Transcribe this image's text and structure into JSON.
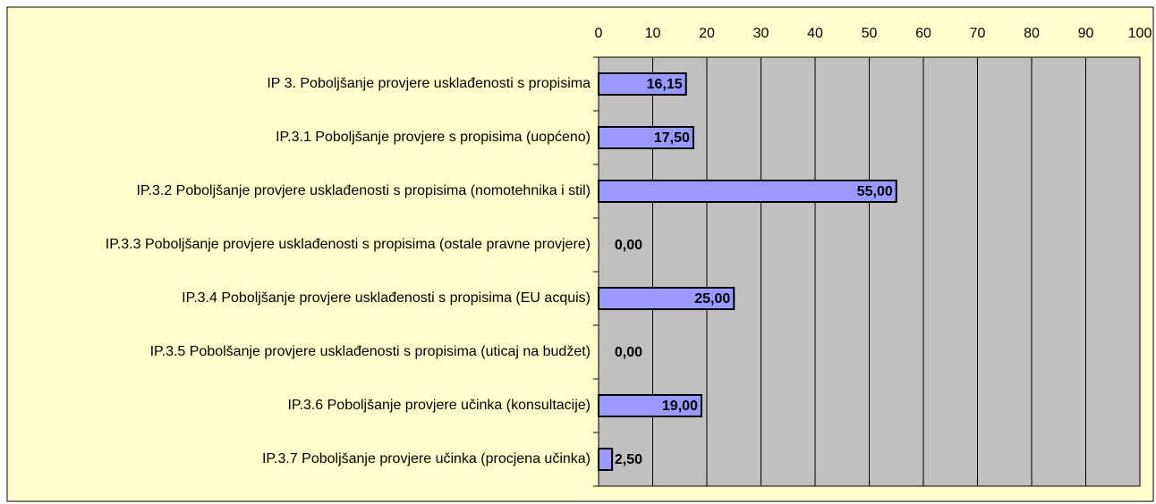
{
  "chart_data": {
    "type": "bar",
    "orientation": "horizontal",
    "categories": [
      "IP 3. Poboljšanje provjere usklađenosti s propisima",
      "IP.3.1 Poboljšanje provjere s propisima (uopćeno)",
      "IP.3.2 Poboljšanje provjere usklađenosti s propisima (nomotehnika i stil)",
      "IP.3.3 Poboljšanje provjere usklađenosti s propisima (ostale pravne provjere)",
      "IP.3.4 Poboljšanje provjere usklađenosti s propisima (EU acquis)",
      "IP.3.5 Pobolšanje provjere usklađenosti s propisima (uticaj na budžet)",
      "IP.3.6 Poboljšanje provjere učinka (konsultacije)",
      "IP.3.7 Poboljšanje provjere učinka (procjena učinka)"
    ],
    "values": [
      16.15,
      17.5,
      55,
      0,
      25,
      0,
      19,
      2.5
    ],
    "value_labels": [
      "16,15",
      "17,50",
      "55,00",
      "0,00",
      "25,00",
      "0,00",
      "19,00",
      "2,50"
    ],
    "color": "#9999ff",
    "xlim": [
      0,
      100
    ],
    "xticks": [
      0,
      10,
      20,
      30,
      40,
      50,
      60,
      70,
      80,
      90,
      100
    ],
    "grid": true
  }
}
